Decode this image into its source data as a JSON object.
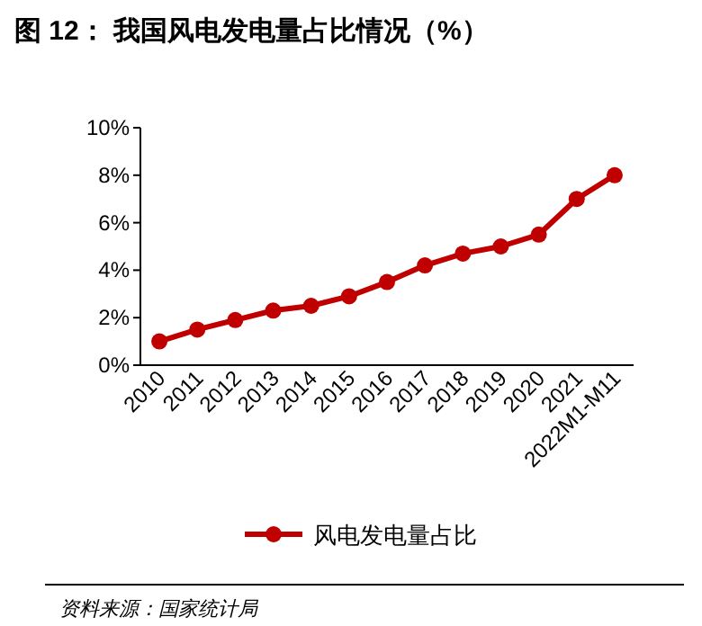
{
  "chart_data": {
    "type": "line",
    "title": "图 12： 我国风电发电量占比情况（%）",
    "categories": [
      "2010",
      "2011",
      "2012",
      "2013",
      "2014",
      "2015",
      "2016",
      "2017",
      "2018",
      "2019",
      "2020",
      "2021",
      "2022M1-M11"
    ],
    "series": [
      {
        "name": "风电发电量占比",
        "color": "#c00000",
        "values": [
          1.0,
          1.5,
          1.9,
          2.3,
          2.5,
          2.9,
          3.5,
          4.2,
          4.7,
          5.0,
          5.5,
          7.0,
          8.0
        ]
      }
    ],
    "ylim": [
      0,
      10
    ],
    "yticks": [
      {
        "value": 0,
        "label": "0%"
      },
      {
        "value": 2,
        "label": "2%"
      },
      {
        "value": 4,
        "label": "4%"
      },
      {
        "value": 6,
        "label": "6%"
      },
      {
        "value": 8,
        "label": "8%"
      },
      {
        "value": 10,
        "label": "10%"
      }
    ],
    "marker": "circle",
    "line_style": "solid",
    "legend": "bottom",
    "grid": false,
    "annotations": [
      "资料来源：国家统计局"
    ]
  }
}
